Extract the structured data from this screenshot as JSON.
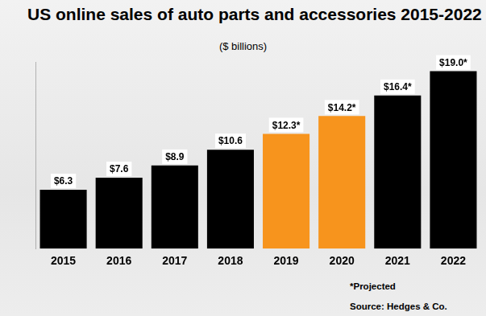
{
  "chart_data": {
    "type": "bar",
    "title": "US online sales of auto parts and accessories 2015-2022",
    "subtitle": "($ billions)",
    "categories": [
      "2015",
      "2016",
      "2017",
      "2018",
      "2019",
      "2020",
      "2021",
      "2022"
    ],
    "values": [
      6.3,
      7.6,
      8.9,
      10.6,
      12.3,
      14.2,
      16.4,
      19.0
    ],
    "value_labels": [
      "$6.3",
      "$7.6",
      "$8.9",
      "$10.6",
      "$12.3*",
      "$14.2*",
      "$16.4*",
      "$19.0*"
    ],
    "colors": [
      "#000000",
      "#000000",
      "#000000",
      "#000000",
      "#f7941d",
      "#f7941d",
      "#000000",
      "#000000"
    ],
    "data_labels": true,
    "ylim": [
      0,
      20
    ],
    "grid": false,
    "tick_labels": "x",
    "annotations": [
      "*Projected",
      "Source: Hedges & Co."
    ]
  }
}
